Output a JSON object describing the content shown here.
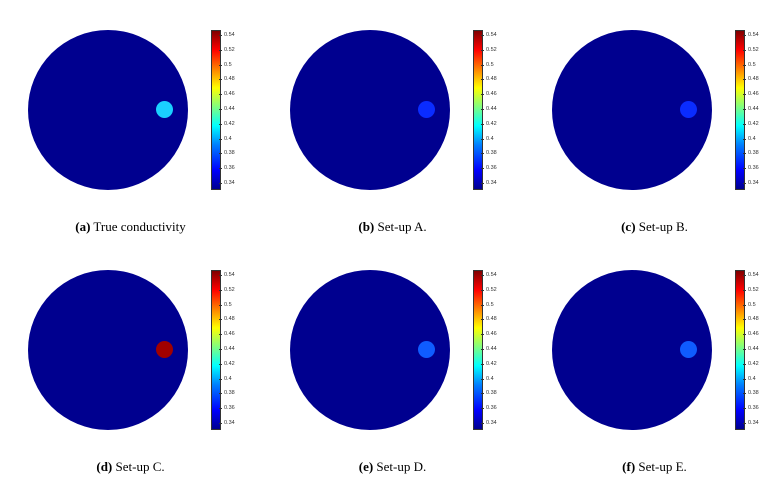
{
  "colorbar": {
    "ticks": [
      "0.54",
      "0.52",
      "0.5",
      "0.48",
      "0.46",
      "0.44",
      "0.42",
      "0.4",
      "0.38",
      "0.36",
      "0.34"
    ]
  },
  "panels": [
    {
      "letter": "(a)",
      "caption": "True conductivity",
      "inclusion_color": "#1ad0ff",
      "background_color": "#00008f"
    },
    {
      "letter": "(b)",
      "caption": "Set-up A.",
      "inclusion_color": "#0a2cff",
      "background_color": "#00008f"
    },
    {
      "letter": "(c)",
      "caption": "Set-up B.",
      "inclusion_color": "#0a2cff",
      "background_color": "#00008f"
    },
    {
      "letter": "(d)",
      "caption": "Set-up C.",
      "inclusion_color": "#a00000",
      "background_color": "#00008f"
    },
    {
      "letter": "(e)",
      "caption": "Set-up D.",
      "inclusion_color": "#0f5cff",
      "background_color": "#00008f"
    },
    {
      "letter": "(f)",
      "caption": "Set-up E.",
      "inclusion_color": "#0f5cff",
      "background_color": "#00008f"
    }
  ]
}
